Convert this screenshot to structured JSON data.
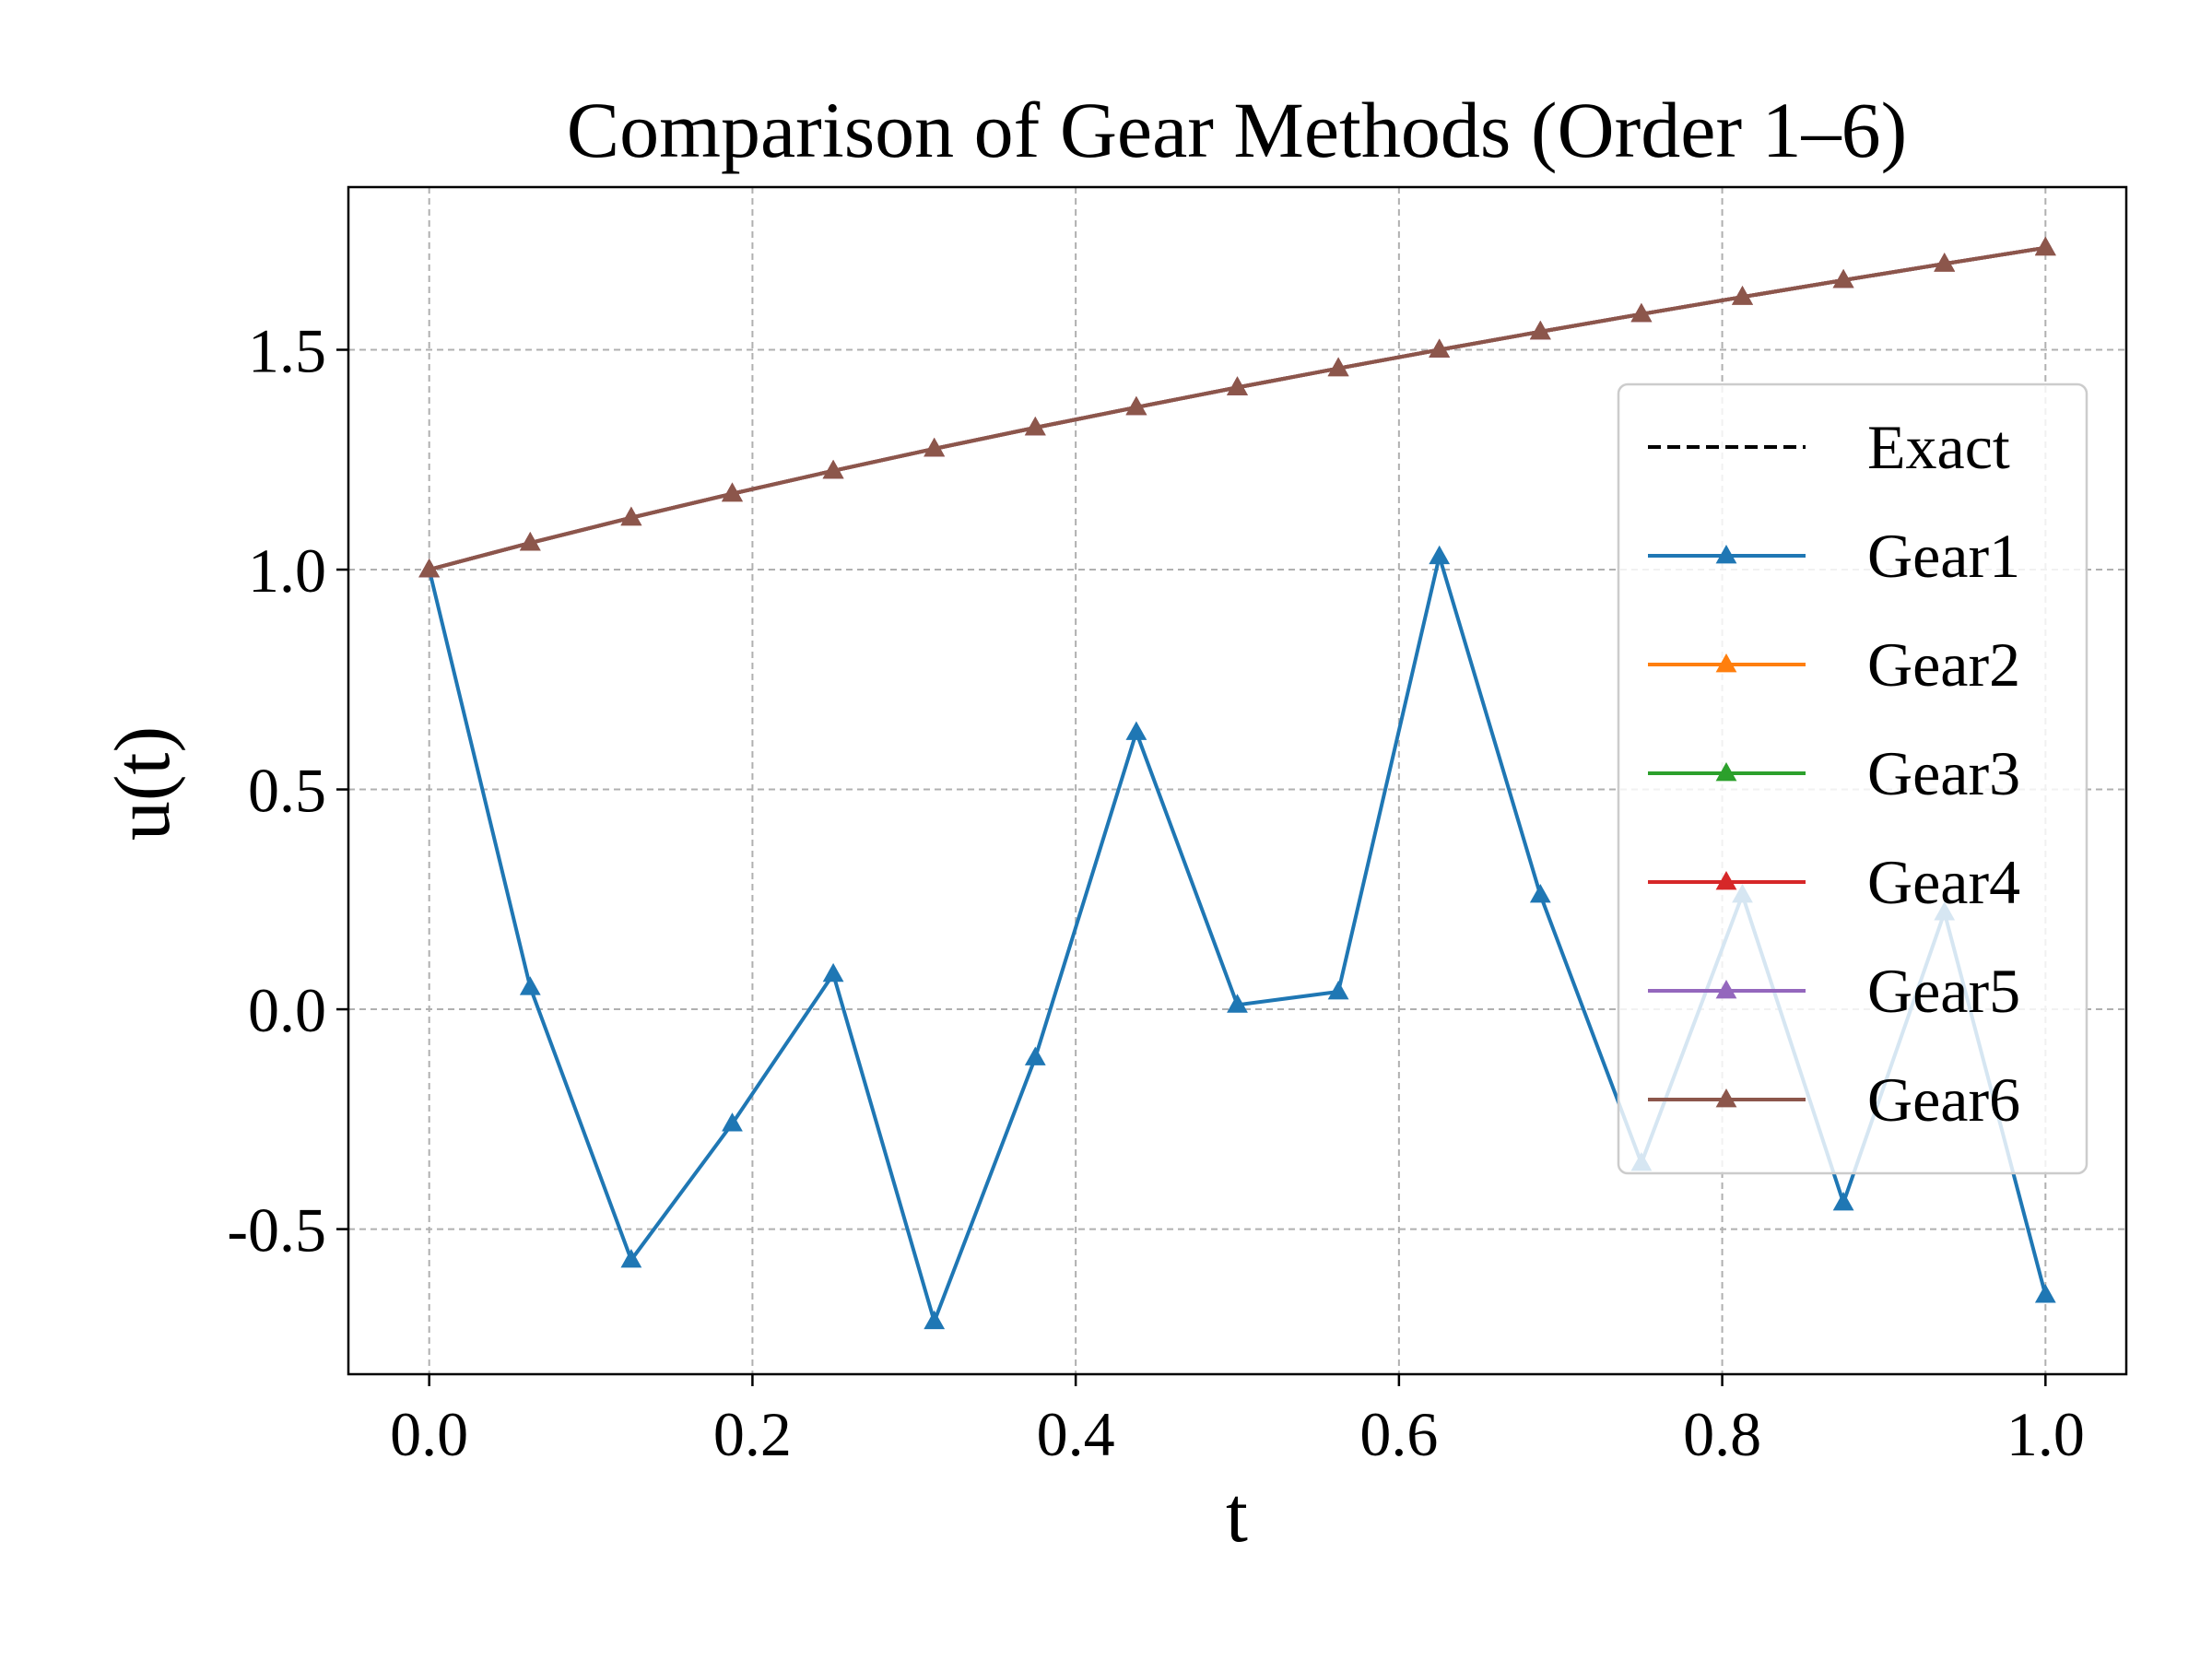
{
  "chart_data": {
    "type": "line",
    "title": "Comparison of Gear Methods (Order 1–6)",
    "xlabel": "t",
    "ylabel": "u(t)",
    "xlim": [
      -0.05,
      1.05
    ],
    "ylim": [
      -0.83,
      1.87
    ],
    "xticks": [
      0.0,
      0.2,
      0.4,
      0.6,
      0.8,
      1.0
    ],
    "xtick_labels": [
      "0.0",
      "0.2",
      "0.4",
      "0.6",
      "0.8",
      "1.0"
    ],
    "yticks": [
      -0.5,
      0.0,
      0.5,
      1.0,
      1.5
    ],
    "ytick_labels": [
      "-0.5",
      "0.0",
      "0.5",
      "1.0",
      "1.5"
    ],
    "grid": true,
    "legend_position": "right",
    "x": [
      0.0,
      0.0625,
      0.125,
      0.1875,
      0.25,
      0.3125,
      0.375,
      0.4375,
      0.5,
      0.5625,
      0.625,
      0.6875,
      0.75,
      0.8125,
      0.875,
      0.9375,
      1.0
    ],
    "series": [
      {
        "name": "Exact",
        "color": "#000000",
        "style": "dashed",
        "marker": "none",
        "values": [
          1.0,
          1.0607,
          1.118,
          1.1726,
          1.2247,
          1.2748,
          1.3229,
          1.3693,
          1.4142,
          1.4577,
          1.5,
          1.5411,
          1.5811,
          1.6202,
          1.6583,
          1.6956,
          1.7321
        ]
      },
      {
        "name": "Gear1",
        "color": "#1f77b4",
        "style": "solid",
        "marker": "triangle",
        "values": [
          1.0,
          0.05,
          -0.57,
          -0.26,
          0.08,
          -0.71,
          -0.11,
          0.63,
          0.01,
          0.04,
          1.03,
          0.26,
          -0.35,
          0.26,
          -0.44,
          0.22,
          -0.65
        ]
      },
      {
        "name": "Gear2",
        "color": "#ff7f0e",
        "style": "solid",
        "marker": "triangle",
        "values": [
          1.0,
          1.0607,
          1.118,
          1.1726,
          1.2247,
          1.2748,
          1.3229,
          1.3693,
          1.4142,
          1.4577,
          1.5,
          1.5411,
          1.5811,
          1.6202,
          1.6583,
          1.6956,
          1.7321
        ]
      },
      {
        "name": "Gear3",
        "color": "#2ca02c",
        "style": "solid",
        "marker": "triangle",
        "values": [
          1.0,
          1.0607,
          1.118,
          1.1726,
          1.2247,
          1.2748,
          1.3229,
          1.3693,
          1.4142,
          1.4577,
          1.5,
          1.5411,
          1.5811,
          1.6202,
          1.6583,
          1.6956,
          1.7321
        ]
      },
      {
        "name": "Gear4",
        "color": "#d62728",
        "style": "solid",
        "marker": "triangle",
        "values": [
          1.0,
          1.0607,
          1.118,
          1.1726,
          1.2247,
          1.2748,
          1.3229,
          1.3693,
          1.4142,
          1.4577,
          1.5,
          1.5411,
          1.5811,
          1.6202,
          1.6583,
          1.6956,
          1.7321
        ]
      },
      {
        "name": "Gear5",
        "color": "#9467bd",
        "style": "solid",
        "marker": "triangle",
        "values": [
          1.0,
          1.0607,
          1.118,
          1.1726,
          1.2247,
          1.2748,
          1.3229,
          1.3693,
          1.4142,
          1.4577,
          1.5,
          1.5411,
          1.5811,
          1.6202,
          1.6583,
          1.6956,
          1.7321
        ]
      },
      {
        "name": "Gear6",
        "color": "#8c564b",
        "style": "solid",
        "marker": "triangle",
        "values": [
          1.0,
          1.0607,
          1.118,
          1.1726,
          1.2247,
          1.2748,
          1.3229,
          1.3693,
          1.4142,
          1.4577,
          1.5,
          1.5411,
          1.5811,
          1.6202,
          1.6583,
          1.6956,
          1.7321
        ]
      }
    ]
  }
}
